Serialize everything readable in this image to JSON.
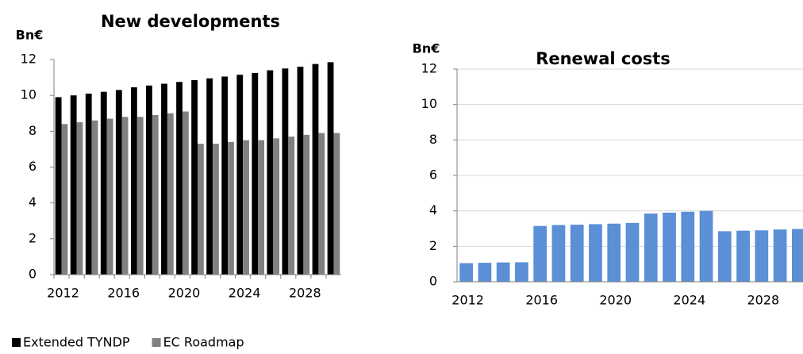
{
  "chart_data": [
    {
      "type": "bar",
      "title": "New developments",
      "y_axis_label": "Bn€",
      "categories": [
        "2012",
        null,
        null,
        null,
        "2016",
        null,
        null,
        null,
        "2020",
        null,
        null,
        null,
        "2024",
        null,
        null,
        null,
        "2028",
        null,
        null
      ],
      "series": [
        {
          "name": "Extended TYNDP",
          "color": "#000000",
          "values": [
            9.9,
            10.0,
            10.1,
            10.2,
            10.3,
            10.45,
            10.55,
            10.65,
            10.75,
            10.85,
            10.95,
            11.05,
            11.15,
            11.25,
            11.4,
            11.5,
            11.6,
            11.75,
            11.85
          ]
        },
        {
          "name": "EC Roadmap",
          "color": "#808080",
          "values": [
            8.4,
            8.5,
            8.6,
            8.7,
            8.8,
            8.8,
            8.9,
            9.0,
            9.1,
            7.3,
            7.3,
            7.4,
            7.5,
            7.5,
            7.6,
            7.7,
            7.8,
            7.9,
            7.9
          ]
        }
      ],
      "ylim": [
        0,
        12
      ],
      "yticks": [
        0,
        2,
        4,
        6,
        8,
        10,
        12
      ],
      "grid": false,
      "legend": "bottom-left"
    },
    {
      "type": "bar",
      "title": "Renewal costs",
      "y_axis_label": "Bn€",
      "categories": [
        "2012",
        null,
        null,
        null,
        "2016",
        null,
        null,
        null,
        "2020",
        null,
        null,
        null,
        "2024",
        null,
        null,
        null,
        "2028",
        null,
        null
      ],
      "values": [
        1.05,
        1.07,
        1.09,
        1.1,
        3.15,
        3.2,
        3.22,
        3.25,
        3.28,
        3.32,
        3.85,
        3.9,
        3.95,
        4.0,
        2.85,
        2.88,
        2.9,
        2.95,
        2.98
      ],
      "color": "#5b8fd6",
      "ylim": [
        0,
        12
      ],
      "yticks": [
        0,
        2,
        4,
        6,
        8,
        10,
        12
      ],
      "grid": true
    }
  ]
}
